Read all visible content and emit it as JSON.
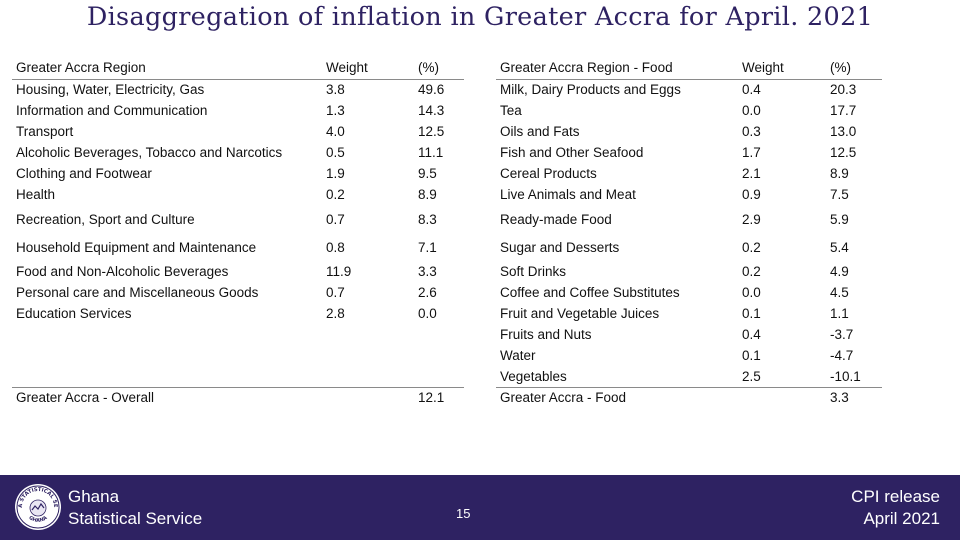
{
  "title": "Disaggregation of inflation in Greater Accra for April. 2021",
  "region_table": {
    "headers": [
      "Greater Accra Region",
      "Weight",
      "(%)"
    ],
    "rows": [
      [
        "Housing, Water, Electricity, Gas",
        "3.8",
        "49.6"
      ],
      [
        "Information and Communication",
        "1.3",
        "14.3"
      ],
      [
        "Transport",
        "4.0",
        "12.5"
      ],
      [
        "Alcoholic Beverages, Tobacco and Narcotics",
        "0.5",
        "11.1"
      ],
      [
        "Clothing and Footwear",
        "1.9",
        "9.5"
      ],
      [
        "Health",
        "0.2",
        "8.9"
      ],
      [
        "Recreation, Sport and Culture",
        "0.7",
        "8.3"
      ],
      [
        "Household Equipment and  Maintenance",
        "0.8",
        "7.1"
      ],
      [
        "Food and Non-Alcoholic Beverages",
        "11.9",
        "3.3"
      ],
      [
        "Personal care and Miscellaneous Goods",
        "0.7",
        "2.6"
      ],
      [
        "Education Services",
        "2.8",
        "0.0"
      ]
    ],
    "overall": [
      "Greater Accra - Overall",
      "",
      "12.1"
    ]
  },
  "food_table": {
    "headers": [
      "Greater Accra Region - Food",
      "Weight",
      "(%)"
    ],
    "rows": [
      [
        "Milk,  Dairy Products and Eggs",
        "0.4",
        "20.3"
      ],
      [
        "Tea",
        "0.0",
        "17.7"
      ],
      [
        "Oils and Fats",
        "0.3",
        "13.0"
      ],
      [
        "Fish and Other Seafood",
        "1.7",
        "12.5"
      ],
      [
        "Cereal Products",
        "2.1",
        "8.9"
      ],
      [
        "Live Animals and Meat",
        "0.9",
        "7.5"
      ],
      [
        "Ready-made Food",
        "2.9",
        "5.9"
      ],
      [
        "Sugar and Desserts",
        "0.2",
        "5.4"
      ],
      [
        "Soft Drinks",
        "0.2",
        "4.9"
      ],
      [
        "Coffee and Coffee Substitutes",
        "0.0",
        "4.5"
      ],
      [
        "Fruit and Vegetable Juices",
        "0.1",
        "1.1"
      ],
      [
        "Fruits and Nuts",
        "0.4",
        "-3.7"
      ],
      [
        "Water",
        "0.1",
        "-4.7"
      ],
      [
        "Vegetables",
        "2.5",
        "-10.1"
      ]
    ],
    "overall": [
      "Greater Accra - Food",
      "",
      "3.3"
    ]
  },
  "footer": {
    "org_line1": "Ghana",
    "org_line2": "Statistical Service",
    "page_number": "15",
    "release_line1": "CPI release",
    "release_line2": "April  2021",
    "logo_text_top": "GHANA STATISTICAL SERVICE",
    "logo_text_bottom": "GHANA",
    "background_color": "#2e2262"
  }
}
